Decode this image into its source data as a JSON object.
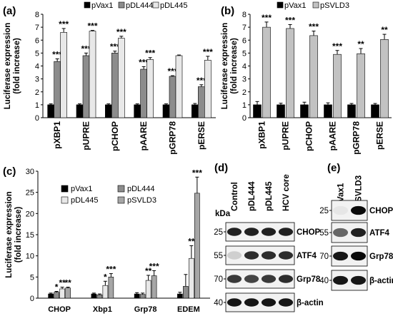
{
  "panels": {
    "a": {
      "letter": "(a)"
    },
    "b": {
      "letter": "(b)"
    },
    "c": {
      "letter": "(c)"
    },
    "d": {
      "letter": "(d)"
    },
    "e": {
      "letter": "(e)"
    }
  },
  "chart_data": [
    {
      "id": "a",
      "type": "bar",
      "ylabel": "Luciferase expression\n(fold increase)",
      "ylim": [
        0,
        8
      ],
      "yticks": [
        0,
        1,
        2,
        3,
        4,
        5,
        6,
        7,
        8
      ],
      "categories": [
        "pXBP1",
        "pUPRE",
        "pCHOP",
        "pAARE",
        "pGRP78",
        "pERSE"
      ],
      "legend_position": "top",
      "series": [
        {
          "name": "pVax1",
          "color": "#000000",
          "values": [
            1,
            1,
            1,
            1,
            1,
            1
          ],
          "errors": [
            0.07,
            0.07,
            0.07,
            0.07,
            0.07,
            0.1
          ],
          "sig": [
            "",
            "",
            "",
            "",
            "",
            ""
          ]
        },
        {
          "name": "pDL444",
          "color": "#8c8c8c",
          "values": [
            4.35,
            4.8,
            5.0,
            3.75,
            3.2,
            2.4
          ],
          "errors": [
            0.2,
            0.2,
            0.15,
            0.2,
            0.05,
            0.15
          ],
          "sig": [
            "***",
            "***",
            "***",
            "***",
            "***",
            "***"
          ]
        },
        {
          "name": "pDL445",
          "color": "#e8e8e8",
          "values": [
            6.6,
            6.7,
            6.15,
            4.5,
            4.8,
            4.45
          ],
          "errors": [
            0.3,
            0.05,
            0.15,
            0.15,
            0.05,
            0.3
          ],
          "sig": [
            "***",
            "***",
            "***",
            "***",
            "",
            "***"
          ]
        }
      ]
    },
    {
      "id": "b",
      "type": "bar",
      "ylabel": "Luciferase expression\n(fold increase)",
      "ylim": [
        0,
        8
      ],
      "yticks": [
        0,
        1,
        2,
        3,
        4,
        5,
        6,
        7,
        8
      ],
      "categories": [
        "pXBP1",
        "pUPRE",
        "pCHOP",
        "pAARE",
        "pGRP78",
        "pERSE"
      ],
      "legend_position": "top",
      "series": [
        {
          "name": "pVax1",
          "color": "#000000",
          "values": [
            1,
            1,
            1,
            1,
            1,
            1
          ],
          "errors": [
            0.25,
            0.12,
            0.2,
            0.15,
            0.1,
            0.1
          ],
          "sig": [
            "",
            "",
            "",
            "",
            "",
            ""
          ]
        },
        {
          "name": "pSVLD3",
          "color": "#c2c2c2",
          "values": [
            7.0,
            6.9,
            6.35,
            4.9,
            4.95,
            6.05
          ],
          "errors": [
            0.4,
            0.3,
            0.35,
            0.3,
            0.4,
            0.4
          ],
          "sig": [
            "***",
            "***",
            "***",
            "***",
            "**",
            "**"
          ]
        }
      ]
    },
    {
      "id": "c",
      "type": "bar",
      "ylabel": "Luciferase expression\n(fold increase)",
      "ylim": [
        0,
        30
      ],
      "yticks": [
        0,
        5,
        10,
        15,
        20,
        25,
        30
      ],
      "categories": [
        "CHOP",
        "Xbp1",
        "Grp78",
        "EDEM"
      ],
      "legend_position": "top",
      "series": [
        {
          "name": "pVax1",
          "color": "#000000",
          "values": [
            1,
            1,
            1,
            1
          ],
          "errors": [
            0.2,
            0.2,
            0.3,
            0.4
          ],
          "sig": [
            "",
            "",
            "",
            ""
          ]
        },
        {
          "name": "pDL444",
          "color": "#8c8c8c",
          "values": [
            1.4,
            0.8,
            0.9,
            2.8
          ],
          "errors": [
            0.2,
            0.2,
            0.3,
            2.8
          ],
          "sig": [
            "*",
            "",
            "",
            ""
          ]
        },
        {
          "name": "pDL445",
          "color": "#e8e8e8",
          "values": [
            2.2,
            3.0,
            4.2,
            9.4
          ],
          "errors": [
            0.4,
            1.0,
            1.2,
            3.0
          ],
          "sig": [
            "**",
            "*",
            "**",
            "**"
          ]
        },
        {
          "name": "pSVLD3",
          "color": "#a6a6a6",
          "values": [
            2.4,
            5.0,
            5.3,
            24.8
          ],
          "errors": [
            0.2,
            0.8,
            1.2,
            3.8
          ],
          "sig": [
            "**",
            "***",
            "***",
            "***"
          ]
        }
      ]
    }
  ],
  "blot_d": {
    "lanes": [
      "Control",
      "pDL444",
      "pDL445",
      "HCV core"
    ],
    "kda_label": "kDa",
    "rows": [
      {
        "marker": "25",
        "label": "CHOP",
        "intensity": [
          0.9,
          0.9,
          0.9,
          0.9
        ]
      },
      {
        "marker": "55",
        "label": "ATF4",
        "intensity": [
          0.15,
          0.85,
          0.85,
          0.85
        ]
      },
      {
        "marker": "70",
        "label": "Grp78",
        "intensity": [
          0.8,
          0.75,
          0.8,
          0.85
        ]
      },
      {
        "marker": "40",
        "label": "β-actin",
        "intensity": [
          0.95,
          0.95,
          0.95,
          0.95
        ]
      }
    ]
  },
  "blot_e": {
    "lanes": [
      "pVax1",
      "pSVLD3"
    ],
    "kda_label": "kDa",
    "rows": [
      {
        "marker": "25",
        "label": "CHOP",
        "intensity": [
          0.05,
          1.0
        ]
      },
      {
        "marker": "55",
        "label": "ATF4",
        "intensity": [
          0.6,
          0.9
        ]
      },
      {
        "marker": "70",
        "label": "Grp78",
        "intensity": [
          0.95,
          1.0
        ]
      },
      {
        "marker": "40",
        "label": "β-actin",
        "intensity": [
          0.95,
          0.95
        ]
      }
    ]
  }
}
